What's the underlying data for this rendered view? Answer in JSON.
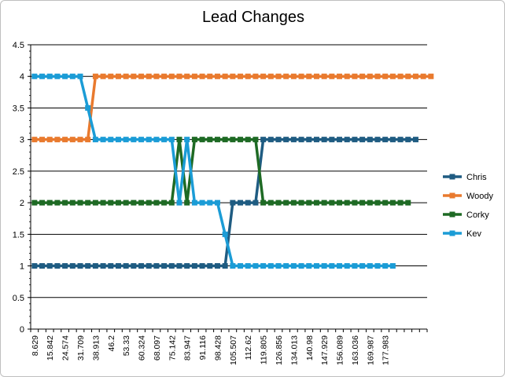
{
  "chart_data": {
    "type": "line",
    "title": "Lead Changes",
    "xlabel": "",
    "ylabel": "",
    "ylim": [
      0,
      4.5
    ],
    "yticks": [
      "0",
      "0.5",
      "1",
      "1.5",
      "2",
      "2.5",
      "3",
      "3.5",
      "4",
      "4.5"
    ],
    "x_tick_labels": [
      "8.629",
      "15.842",
      "24.574",
      "31.709",
      "38.913",
      "46.2",
      "53.33",
      "60.324",
      "68.097",
      "75.142",
      "83.947",
      "91.116",
      "98.428",
      "105.507",
      "112.62",
      "119.805",
      "126.856",
      "134.013",
      "140.98",
      "147.929",
      "156.089",
      "163.036",
      "169.987",
      "177.983"
    ],
    "grid": "horizontal",
    "legend_position": "right",
    "series": [
      {
        "name": "Chris",
        "color": "#1f5c82",
        "values": [
          1,
          1,
          1,
          1,
          1,
          1,
          1,
          1,
          1,
          1,
          1,
          1,
          1,
          1,
          1,
          1,
          1,
          1,
          1,
          1,
          1,
          1,
          1,
          1,
          1,
          1,
          2,
          2,
          2,
          2,
          3,
          3,
          3,
          3,
          3,
          3,
          3,
          3,
          3,
          3,
          3,
          3,
          3,
          3,
          3,
          3,
          3,
          3,
          3,
          3,
          3
        ]
      },
      {
        "name": "Woody",
        "color": "#e97a2e",
        "values": [
          3,
          3,
          3,
          3,
          3,
          3,
          3,
          3,
          4,
          4,
          4,
          4,
          4,
          4,
          4,
          4,
          4,
          4,
          4,
          4,
          4,
          4,
          4,
          4,
          4,
          4,
          4,
          4,
          4,
          4,
          4,
          4,
          4,
          4,
          4,
          4,
          4,
          4,
          4,
          4,
          4,
          4,
          4,
          4,
          4,
          4,
          4,
          4,
          4,
          4,
          4,
          4,
          4
        ]
      },
      {
        "name": "Corky",
        "color": "#1e6a24",
        "values": [
          2,
          2,
          2,
          2,
          2,
          2,
          2,
          2,
          2,
          2,
          2,
          2,
          2,
          2,
          2,
          2,
          2,
          2,
          2,
          3,
          2,
          3,
          3,
          3,
          3,
          3,
          3,
          3,
          3,
          3,
          2,
          2,
          2,
          2,
          2,
          2,
          2,
          2,
          2,
          2,
          2,
          2,
          2,
          2,
          2,
          2,
          2,
          2,
          2,
          2
        ]
      },
      {
        "name": "Kev",
        "color": "#1b9cd6",
        "values": [
          4,
          4,
          4,
          4,
          4,
          4,
          4,
          3.5,
          3,
          3,
          3,
          3,
          3,
          3,
          3,
          3,
          3,
          3,
          3,
          2,
          3,
          2,
          2,
          2,
          2,
          1.5,
          1,
          1,
          1,
          1,
          1,
          1,
          1,
          1,
          1,
          1,
          1,
          1,
          1,
          1,
          1,
          1,
          1,
          1,
          1,
          1,
          1,
          1
        ]
      }
    ]
  }
}
